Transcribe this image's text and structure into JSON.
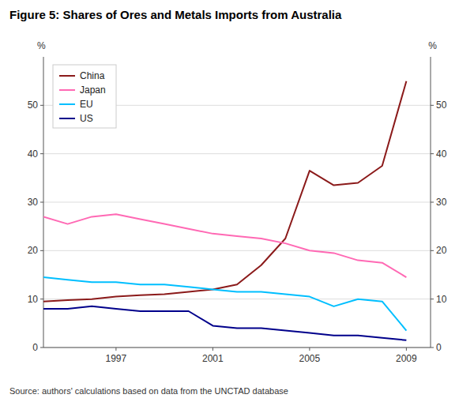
{
  "chart_data": {
    "type": "line",
    "title": "Figure 5: Shares of Ores and Metals Imports from Australia",
    "source": "Source:  authors' calculations based on data from the UNCTAD database",
    "y_label": "%",
    "y2_label": "%",
    "x": [
      1994,
      1995,
      1996,
      1997,
      1998,
      1999,
      2000,
      2001,
      2002,
      2003,
      2004,
      2005,
      2006,
      2007,
      2008,
      2009
    ],
    "xlim": [
      1994,
      2010
    ],
    "xticks": [
      1997,
      2001,
      2005,
      2009
    ],
    "ylim": [
      0,
      60
    ],
    "yticks": [
      0,
      10,
      20,
      30,
      40,
      50
    ],
    "y2lim": [
      0,
      60
    ],
    "y2ticks": [
      0,
      10,
      20,
      30,
      40,
      50
    ],
    "grid": true,
    "legend": "upper left",
    "series": [
      {
        "name": "China",
        "color": "#8B1A1A",
        "values": [
          9.5,
          9.8,
          10.0,
          10.5,
          10.8,
          11.0,
          11.5,
          12.0,
          13.0,
          17.0,
          22.5,
          36.5,
          33.5,
          34.0,
          37.5,
          55.0
        ]
      },
      {
        "name": "Japan",
        "color": "#FF69B4",
        "values": [
          27.0,
          25.5,
          27.0,
          27.5,
          26.5,
          25.5,
          24.5,
          23.5,
          23.0,
          22.5,
          21.5,
          20.0,
          19.5,
          18.0,
          17.5,
          14.5
        ]
      },
      {
        "name": "EU",
        "color": "#00BFFF",
        "values": [
          14.5,
          14.0,
          13.5,
          13.5,
          13.0,
          13.0,
          12.5,
          12.0,
          11.5,
          11.5,
          11.0,
          10.5,
          8.5,
          10.0,
          9.5,
          3.5
        ]
      },
      {
        "name": "US",
        "color": "#00008B",
        "values": [
          8.0,
          8.0,
          8.5,
          8.0,
          7.5,
          7.5,
          7.5,
          4.5,
          4.0,
          4.0,
          3.5,
          3.0,
          2.5,
          2.5,
          2.0,
          1.5
        ]
      }
    ]
  }
}
